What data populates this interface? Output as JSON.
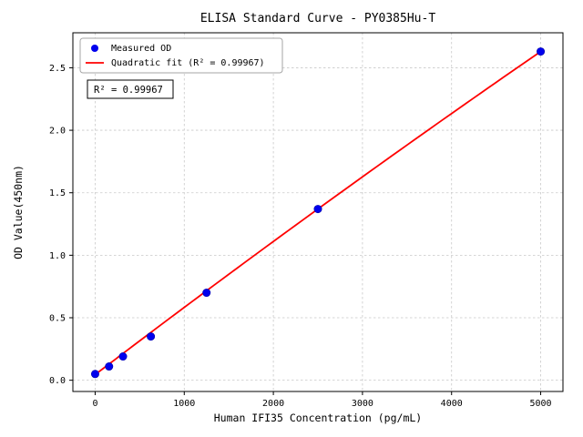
{
  "chart_data": {
    "type": "scatter",
    "title": "ELISA Standard Curve - PY0385Hu-T",
    "xlabel": "Human IFI35 Concentration (pg/mL)",
    "ylabel": "OD Value(450nm)",
    "xlim": [
      -250,
      5250
    ],
    "ylim": [
      -0.09,
      2.78
    ],
    "x_ticks": [
      0,
      1000,
      2000,
      3000,
      4000,
      5000
    ],
    "x_tick_labels": [
      "0",
      "1000",
      "2000",
      "3000",
      "4000",
      "5000"
    ],
    "y_ticks": [
      0.0,
      0.5,
      1.0,
      1.5,
      2.0,
      2.5
    ],
    "y_tick_labels": [
      "0.0",
      "0.5",
      "1.0",
      "1.5",
      "2.0",
      "2.5"
    ],
    "grid": true,
    "legend_position": "upper-left",
    "series": [
      {
        "name": "Measured OD",
        "type": "scatter",
        "color": "#0000ee",
        "edge_color": "#0000aa",
        "x": [
          0,
          156.25,
          312.5,
          625,
          1250,
          2500,
          5000
        ],
        "y": [
          0.05,
          0.11,
          0.19,
          0.35,
          0.7,
          1.37,
          2.63
        ]
      },
      {
        "name": "Quadratic fit (R² = 0.99967)",
        "type": "quadratic-fit",
        "color": "#ff0000",
        "coefficients": {
          "a": 0.045,
          "b": 0.000543,
          "c": -5.2e-09
        },
        "x_range": [
          0,
          5000
        ]
      }
    ],
    "annotation": "R² = 0.99967"
  }
}
